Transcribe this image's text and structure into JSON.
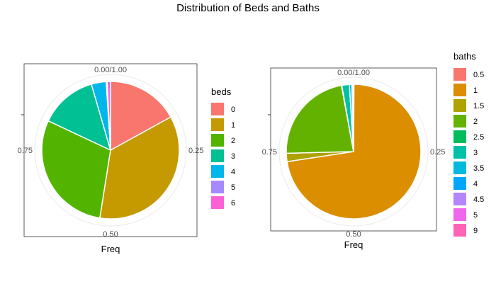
{
  "title": "Distribution of Beds and Baths",
  "chart_data": [
    {
      "type": "pie",
      "xlabel": "Freq",
      "ylabel": "",
      "theta_ticks": [
        "0.00/1.00",
        "0.25",
        "0.50",
        "0.75"
      ],
      "legend": {
        "title": "beds",
        "position": "right"
      },
      "categories": [
        "0",
        "1",
        "2",
        "3",
        "4",
        "5",
        "6"
      ],
      "values": [
        0.17,
        0.355,
        0.295,
        0.135,
        0.035,
        0.002,
        0.008
      ],
      "colors": [
        "#F8766D",
        "#C49A00",
        "#53B400",
        "#00C094",
        "#00B6EB",
        "#A58AFF",
        "#FB61D7"
      ]
    },
    {
      "type": "pie",
      "xlabel": "Freq",
      "ylabel": "",
      "theta_ticks": [
        "0.00/1.00",
        "0.25",
        "0.50",
        "0.75"
      ],
      "legend": {
        "title": "baths",
        "position": "right"
      },
      "categories": [
        "0.5",
        "1",
        "1.5",
        "2",
        "2.5",
        "3",
        "3.5",
        "4",
        "4.5",
        "5",
        "9"
      ],
      "values": [
        0.001,
        0.725,
        0.02,
        0.225,
        0.001,
        0.018,
        0.006,
        0.001,
        0.001,
        0.001,
        0.001
      ],
      "colors": [
        "#F8766D",
        "#DB8E00",
        "#AEA200",
        "#64B200",
        "#00BD5C",
        "#00C1A7",
        "#00BADE",
        "#00A6FF",
        "#B385FF",
        "#EF67EB",
        "#FF63B6"
      ]
    }
  ]
}
